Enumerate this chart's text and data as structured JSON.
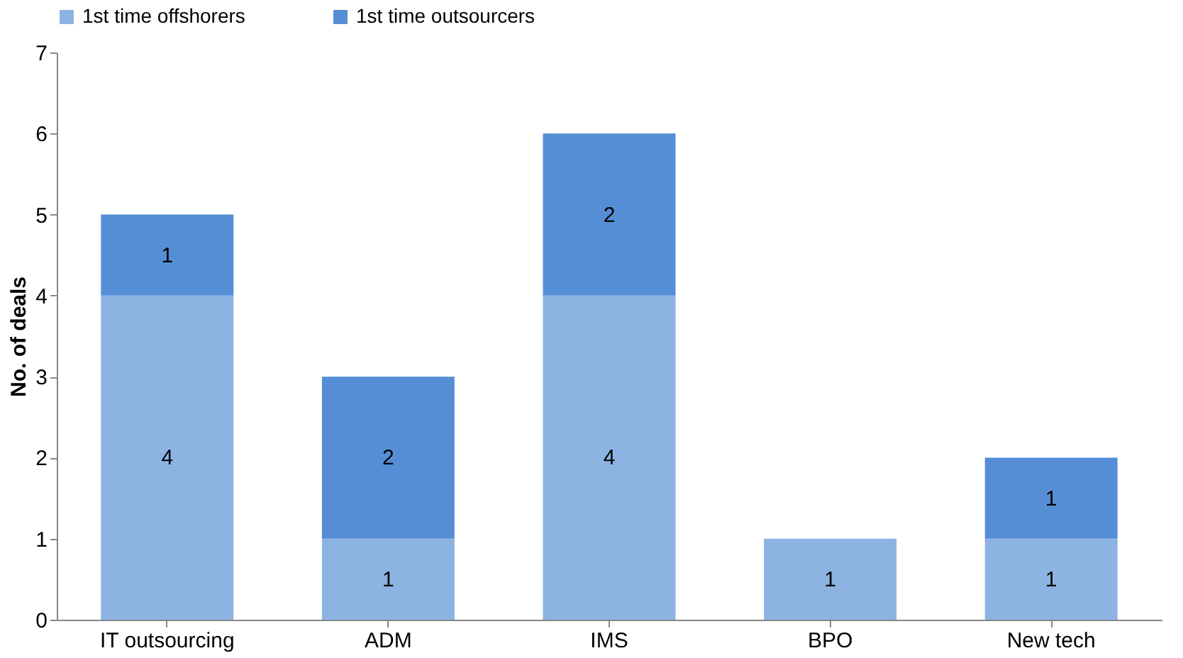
{
  "chart_data": {
    "type": "bar",
    "stacked": true,
    "ylabel": "No. of deals",
    "categories": [
      "IT outsourcing",
      "ADM",
      "IMS",
      "BPO",
      "New tech"
    ],
    "series": [
      {
        "name": "1st time offshorers",
        "color": "#8db3e2",
        "values": [
          4,
          1,
          4,
          1,
          1
        ],
        "value_labels": [
          "4",
          "1",
          "4",
          "1",
          "1"
        ]
      },
      {
        "name": "1st time outsourcers",
        "color": "#558ed5",
        "values": [
          1,
          2,
          2,
          0,
          1
        ],
        "value_labels": [
          "1",
          "2",
          "2",
          null,
          "1"
        ]
      }
    ],
    "ylim": [
      0,
      7
    ],
    "yticks": [
      0,
      1,
      2,
      3,
      4,
      5,
      6,
      7
    ],
    "grid": false,
    "legend": "top"
  }
}
